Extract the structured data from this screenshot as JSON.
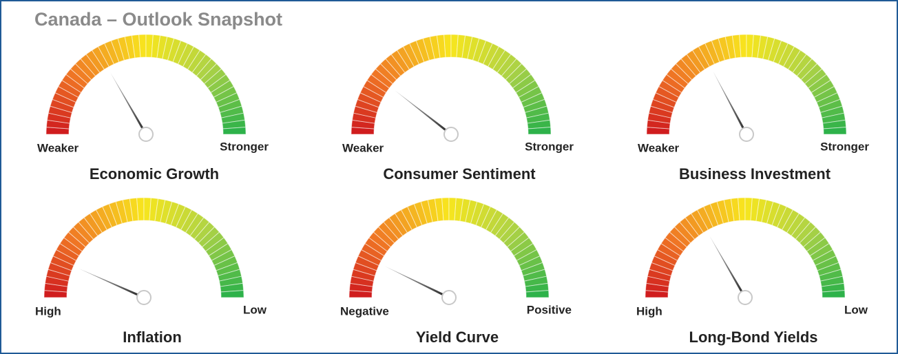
{
  "header": {
    "title": "Canada – Outlook Snapshot"
  },
  "gauges": [
    {
      "name": "Economic Growth",
      "left_label": "Weaker",
      "right_label": "Stronger",
      "needle_deg": 60
    },
    {
      "name": "Consumer Sentiment",
      "left_label": "Weaker",
      "right_label": "Stronger",
      "needle_deg": 38
    },
    {
      "name": "Business Investment",
      "left_label": "Weaker",
      "right_label": "Stronger",
      "needle_deg": 62
    },
    {
      "name": "Inflation",
      "left_label": "High",
      "right_label": "Low",
      "needle_deg": 24
    },
    {
      "name": "Yield Curve",
      "left_label": "Negative",
      "right_label": "Positive",
      "needle_deg": 26
    },
    {
      "name": "Long-Bond Yields",
      "left_label": "High",
      "right_label": "Low",
      "needle_deg": 60
    }
  ]
}
